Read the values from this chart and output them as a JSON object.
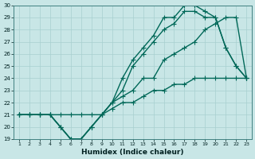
{
  "title": "",
  "xlabel": "Humidex (Indice chaleur)",
  "xlim": [
    0.5,
    23.5
  ],
  "ylim": [
    19,
    30
  ],
  "xticks": [
    1,
    2,
    3,
    4,
    5,
    6,
    7,
    8,
    9,
    10,
    11,
    12,
    13,
    14,
    15,
    16,
    17,
    18,
    19,
    20,
    21,
    22,
    23
  ],
  "yticks": [
    19,
    20,
    21,
    22,
    23,
    24,
    25,
    26,
    27,
    28,
    29,
    30
  ],
  "bg_color": "#c8e6e6",
  "grid_color": "#a8d0d0",
  "line_color": "#006858",
  "line_width": 1.0,
  "marker": "+",
  "marker_size": 4,
  "series": [
    {
      "x": [
        1,
        2,
        3,
        4,
        5,
        6,
        7,
        8,
        9,
        10,
        11,
        12,
        13,
        14,
        15,
        16,
        17,
        18,
        19,
        20,
        21,
        22,
        23
      ],
      "y": [
        21,
        21,
        21,
        21,
        21,
        21,
        21,
        21,
        21,
        21.5,
        22,
        22,
        22.5,
        23,
        23,
        23.5,
        23.5,
        24,
        24,
        24,
        24,
        24,
        24
      ]
    },
    {
      "x": [
        1,
        2,
        3,
        4,
        5,
        6,
        7,
        8,
        9,
        10,
        11,
        12,
        13,
        14,
        15,
        16,
        17,
        18,
        19,
        20,
        21,
        22,
        23
      ],
      "y": [
        21,
        21,
        21,
        21,
        20,
        19,
        19,
        20,
        21,
        22,
        22.5,
        23,
        24,
        24,
        25.5,
        26,
        26.5,
        27,
        28,
        28.5,
        29,
        29,
        24
      ]
    },
    {
      "x": [
        1,
        2,
        3,
        4,
        5,
        6,
        7,
        8,
        9,
        10,
        11,
        12,
        13,
        14,
        15,
        16,
        17,
        18,
        19,
        20,
        21,
        22,
        23
      ],
      "y": [
        21,
        21,
        21,
        21,
        20,
        19,
        19,
        20,
        21,
        22,
        23,
        25,
        26,
        27,
        28,
        28.5,
        29.5,
        29.5,
        29,
        29,
        26.5,
        25,
        24
      ]
    },
    {
      "x": [
        1,
        2,
        3,
        4,
        5,
        6,
        7,
        8,
        9,
        10,
        11,
        12,
        13,
        14,
        15,
        16,
        17,
        18,
        19,
        20,
        21,
        22,
        23
      ],
      "y": [
        21,
        21,
        21,
        21,
        20,
        19,
        19,
        20,
        21,
        22,
        24,
        25.5,
        26.5,
        27.5,
        29,
        29,
        30,
        30,
        29.5,
        29,
        26.5,
        25,
        24
      ]
    }
  ]
}
